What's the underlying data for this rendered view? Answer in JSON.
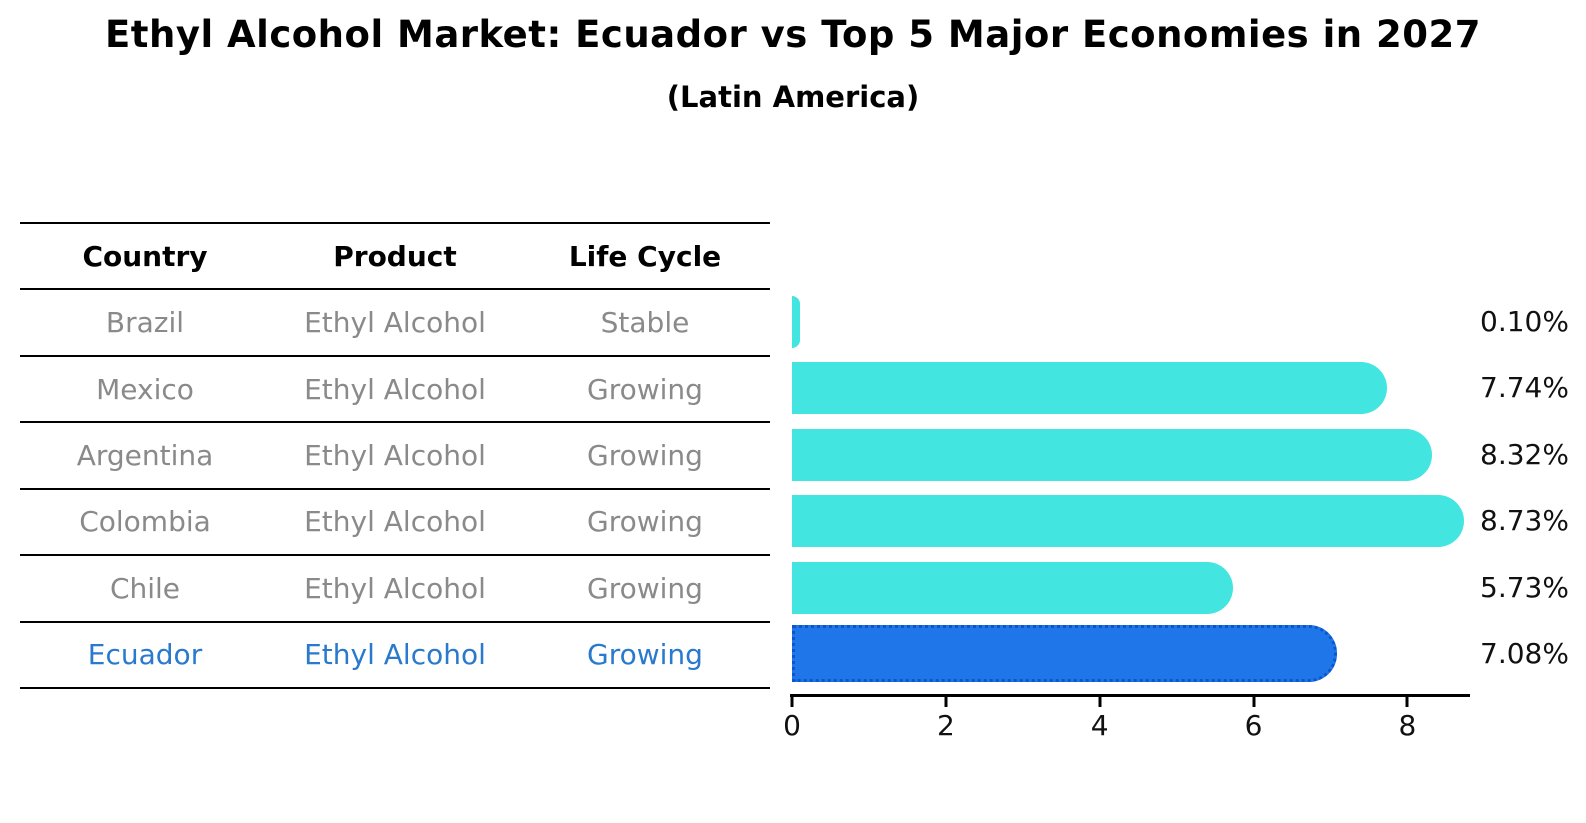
{
  "title": "Ethyl Alcohol Market: Ecuador vs Top 5 Major Economies in 2027",
  "subtitle": "(Latin America)",
  "table": {
    "headers": [
      "Country",
      "Product",
      "Life Cycle"
    ],
    "rows": [
      {
        "country": "Brazil",
        "product": "Ethyl Alcohol",
        "life_cycle": "Stable",
        "highlight": false
      },
      {
        "country": "Mexico",
        "product": "Ethyl Alcohol",
        "life_cycle": "Growing",
        "highlight": false
      },
      {
        "country": "Argentina",
        "product": "Ethyl Alcohol",
        "life_cycle": "Growing",
        "highlight": false
      },
      {
        "country": "Colombia",
        "product": "Ethyl Alcohol",
        "life_cycle": "Growing",
        "highlight": false
      },
      {
        "country": "Chile",
        "product": "Ethyl Alcohol",
        "life_cycle": "Growing",
        "highlight": false
      },
      {
        "country": "Ecuador",
        "product": "Ethyl Alcohol",
        "life_cycle": "Growing",
        "highlight": true
      }
    ]
  },
  "chart_data": {
    "type": "bar",
    "orientation": "horizontal",
    "title": "Ethyl Alcohol Market: Ecuador vs Top 5 Major Economies in 2027",
    "subtitle": "(Latin America)",
    "categories": [
      "Brazil",
      "Mexico",
      "Argentina",
      "Colombia",
      "Chile",
      "Ecuador"
    ],
    "values": [
      0.1,
      7.74,
      8.32,
      8.73,
      5.73,
      7.08
    ],
    "value_labels": [
      "0.10%",
      "7.74%",
      "8.32%",
      "8.73%",
      "5.73%",
      "7.08%"
    ],
    "x_ticks": [
      0,
      2,
      4,
      6,
      8
    ],
    "xlim": [
      0,
      8.8
    ],
    "grid": false,
    "legend": "none",
    "highlight_index": 5,
    "colors": {
      "bar_default": "#42e5e0",
      "bar_highlight": "#1e76e8",
      "highlight_border": "#0b55cd",
      "highlight_text": "#2979cd",
      "table_text": "#8a8a8a",
      "axis_text": "#111111"
    }
  }
}
